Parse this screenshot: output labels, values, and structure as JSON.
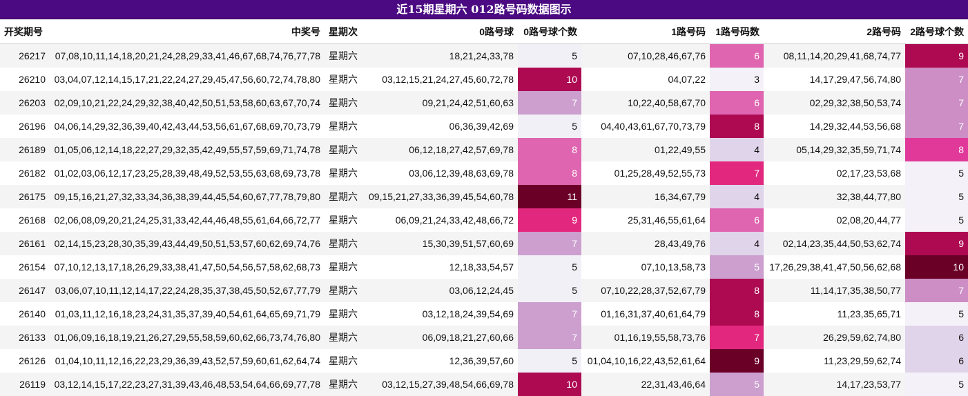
{
  "title": "近15期星期六 012路号码数据图示",
  "headers": [
    "开奖期号",
    "中奖号",
    "星期次",
    "0路号球",
    "0路号球个数",
    "1路号码",
    "1路号码数",
    "2路号码",
    "2路号球个数"
  ],
  "rows": [
    {
      "issue": "26217",
      "numbers": "07,08,10,11,14,18,20,21,24,28,29,33,41,46,67,68,74,76,77,78",
      "weekday": "星期六",
      "r0": "18,21,24,33,78",
      "c0": 5,
      "r1": "07,10,28,46,67,76",
      "c1": 6,
      "r2": "08,11,14,20,29,41,68,74,77",
      "c2": 9
    },
    {
      "issue": "26210",
      "numbers": "03,04,07,12,14,15,17,21,22,24,27,29,45,47,56,60,72,74,78,80",
      "weekday": "星期六",
      "r0": "03,12,15,21,24,27,45,60,72,78",
      "c0": 10,
      "r1": "04,07,22",
      "c1": 3,
      "r2": "14,17,29,47,56,74,80",
      "c2": 7
    },
    {
      "issue": "26203",
      "numbers": "02,09,10,21,22,24,29,32,38,40,42,50,51,53,58,60,63,67,70,74",
      "weekday": "星期六",
      "r0": "09,21,24,42,51,60,63",
      "c0": 7,
      "r1": "10,22,40,58,67,70",
      "c1": 6,
      "r2": "02,29,32,38,50,53,74",
      "c2": 7
    },
    {
      "issue": "26196",
      "numbers": "04,06,14,29,32,36,39,40,42,43,44,53,56,61,67,68,69,70,73,79",
      "weekday": "星期六",
      "r0": "06,36,39,42,69",
      "c0": 5,
      "r1": "04,40,43,61,67,70,73,79",
      "c1": 8,
      "r2": "14,29,32,44,53,56,68",
      "c2": 7
    },
    {
      "issue": "26189",
      "numbers": "01,05,06,12,14,18,22,27,29,32,35,42,49,55,57,59,69,71,74,78",
      "weekday": "星期六",
      "r0": "06,12,18,27,42,57,69,78",
      "c0": 8,
      "r1": "01,22,49,55",
      "c1": 4,
      "r2": "05,14,29,32,35,59,71,74",
      "c2": 8
    },
    {
      "issue": "26182",
      "numbers": "01,02,03,06,12,17,23,25,28,39,48,49,52,53,55,63,68,69,73,78",
      "weekday": "星期六",
      "r0": "03,06,12,39,48,63,69,78",
      "c0": 8,
      "r1": "01,25,28,49,52,55,73",
      "c1": 7,
      "r2": "02,17,23,53,68",
      "c2": 5
    },
    {
      "issue": "26175",
      "numbers": "09,15,16,21,27,32,33,34,36,38,39,44,45,54,60,67,77,78,79,80",
      "weekday": "星期六",
      "r0": "09,15,21,27,33,36,39,45,54,60,78",
      "c0": 11,
      "r1": "16,34,67,79",
      "c1": 4,
      "r2": "32,38,44,77,80",
      "c2": 5
    },
    {
      "issue": "26168",
      "numbers": "02,06,08,09,20,21,24,25,31,33,42,44,46,48,55,61,64,66,72,77",
      "weekday": "星期六",
      "r0": "06,09,21,24,33,42,48,66,72",
      "c0": 9,
      "r1": "25,31,46,55,61,64",
      "c1": 6,
      "r2": "02,08,20,44,77",
      "c2": 5
    },
    {
      "issue": "26161",
      "numbers": "02,14,15,23,28,30,35,39,43,44,49,50,51,53,57,60,62,69,74,76",
      "weekday": "星期六",
      "r0": "15,30,39,51,57,60,69",
      "c0": 7,
      "r1": "28,43,49,76",
      "c1": 4,
      "r2": "02,14,23,35,44,50,53,62,74",
      "c2": 9
    },
    {
      "issue": "26154",
      "numbers": "07,10,12,13,17,18,26,29,33,38,41,47,50,54,56,57,58,62,68,73",
      "weekday": "星期六",
      "r0": "12,18,33,54,57",
      "c0": 5,
      "r1": "07,10,13,58,73",
      "c1": 5,
      "r2": "17,26,29,38,41,47,50,56,62,68",
      "c2": 10
    },
    {
      "issue": "26147",
      "numbers": "03,06,07,10,11,12,14,17,22,24,28,35,37,38,45,50,52,67,77,79",
      "weekday": "星期六",
      "r0": "03,06,12,24,45",
      "c0": 5,
      "r1": "07,10,22,28,37,52,67,79",
      "c1": 8,
      "r2": "11,14,17,35,38,50,77",
      "c2": 7
    },
    {
      "issue": "26140",
      "numbers": "01,03,11,12,16,18,23,24,31,35,37,39,40,54,61,64,65,69,71,79",
      "weekday": "星期六",
      "r0": "03,12,18,24,39,54,69",
      "c0": 7,
      "r1": "01,16,31,37,40,61,64,79",
      "c1": 8,
      "r2": "11,23,35,65,71",
      "c2": 5
    },
    {
      "issue": "26133",
      "numbers": "01,06,09,16,18,19,21,26,27,29,55,58,59,60,62,66,73,74,76,80",
      "weekday": "星期六",
      "r0": "06,09,18,21,27,60,66",
      "c0": 7,
      "r1": "01,16,19,55,58,73,76",
      "c1": 7,
      "r2": "26,29,59,62,74,80",
      "c2": 6
    },
    {
      "issue": "26126",
      "numbers": "01,04,10,11,12,16,22,23,29,36,39,43,52,57,59,60,61,62,64,74",
      "weekday": "星期六",
      "r0": "12,36,39,57,60",
      "c0": 5,
      "r1": "01,04,10,16,22,43,52,61,64",
      "c1": 9,
      "r2": "11,23,29,59,62,74",
      "c2": 6
    },
    {
      "issue": "26119",
      "numbers": "03,12,14,15,17,22,23,27,31,39,43,46,48,53,54,64,66,69,77,78",
      "weekday": "星期六",
      "r0": "03,12,15,27,39,48,54,66,69,78",
      "c0": 10,
      "r1": "22,31,43,46,64",
      "c1": 5,
      "r2": "14,17,23,53,77",
      "c2": 5
    }
  ],
  "colors": {
    "header_bg": "#4b0a82",
    "scale_c0": {
      "5": "#f2f0f7",
      "7": "#cc9fcf",
      "8": "#df65b0",
      "9": "#e2287e",
      "10": "#ad0a52",
      "11": "#6b0027"
    },
    "scale_c1": {
      "3": "#f4f2f8",
      "4": "#e0d4ea",
      "5": "#cc9fcf",
      "6": "#df65b0",
      "7": "#e2287e",
      "8": "#ad0a52",
      "9": "#6b0027"
    },
    "scale_c2": {
      "5": "#f4f2f8",
      "6": "#e0d4ea",
      "7": "#cc8ec4",
      "8": "#e0399a",
      "9": "#ad0a52",
      "10": "#6b0027"
    }
  }
}
